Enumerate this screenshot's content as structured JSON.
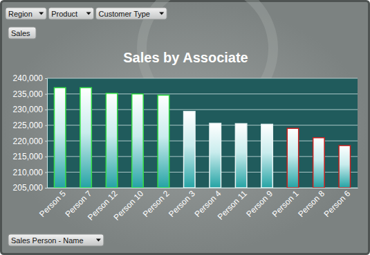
{
  "chart_data": {
    "type": "bar",
    "title": "Sales by Associate",
    "categories": [
      "Person 5",
      "Person 7",
      "Person 12",
      "Person 10",
      "Person 2",
      "Person 3",
      "Person 4",
      "Person 11",
      "Person 9",
      "Person 1",
      "Person 8",
      "Person 6"
    ],
    "values": [
      237000,
      237000,
      235200,
      235000,
      234600,
      229400,
      225600,
      225500,
      225300,
      224000,
      221000,
      218500
    ],
    "colors": [
      "#33dd44",
      "#33dd44",
      "#33dd44",
      "#33dd44",
      "#33dd44",
      "#e8f4f4",
      "#e8f4f4",
      "#e8f4f4",
      "#e8f4f4",
      "#c8201e",
      "#c8201e",
      "#c8201e"
    ],
    "ylim": [
      205000,
      240000
    ],
    "yticks": [
      {
        "value": 205000,
        "label": "205,000"
      },
      {
        "value": 210000,
        "label": "210,000"
      },
      {
        "value": 215000,
        "label": "215,000"
      },
      {
        "value": 220000,
        "label": "220,000"
      },
      {
        "value": 225000,
        "label": "225,000"
      },
      {
        "value": 230000,
        "label": "230,000"
      },
      {
        "value": 235000,
        "label": "235,000"
      },
      {
        "value": 240000,
        "label": "240,000"
      }
    ],
    "grid": true
  },
  "pivot_buttons": {
    "report_filters": [
      "Region",
      "Product",
      "Customer Type"
    ],
    "value_field": "Sales",
    "axis_field": "Sales Person - Name"
  }
}
